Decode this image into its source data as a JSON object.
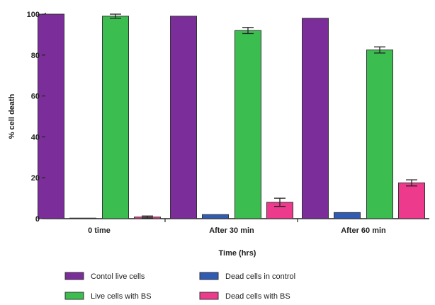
{
  "chart_data": {
    "type": "bar",
    "title": "",
    "xlabel": "Time (hrs)",
    "ylabel": "% cell death",
    "ylim": [
      0,
      100
    ],
    "yticks": [
      0,
      20,
      40,
      60,
      80,
      100
    ],
    "grid": false,
    "legend_position": "bottom",
    "categories": [
      "0 time",
      "After 30 min",
      "After 60 min"
    ],
    "series": [
      {
        "name": "Contol live cells",
        "color": "#7b2d9a",
        "values": [
          100,
          99,
          98
        ],
        "errors": [
          0,
          0,
          0
        ]
      },
      {
        "name": "Dead cells in control",
        "color": "#2f5bb4",
        "values": [
          0,
          2,
          3
        ],
        "errors": [
          0,
          0,
          0
        ]
      },
      {
        "name": "Live cells with BS",
        "color": "#3bbd4f",
        "values": [
          99,
          92,
          82.5
        ],
        "errors": [
          1,
          1.5,
          1.5
        ]
      },
      {
        "name": "Dead cells with BS",
        "color": "#ee3a8c",
        "values": [
          0.8,
          8,
          17.5
        ],
        "errors": [
          0.5,
          2,
          1.5
        ]
      }
    ]
  }
}
